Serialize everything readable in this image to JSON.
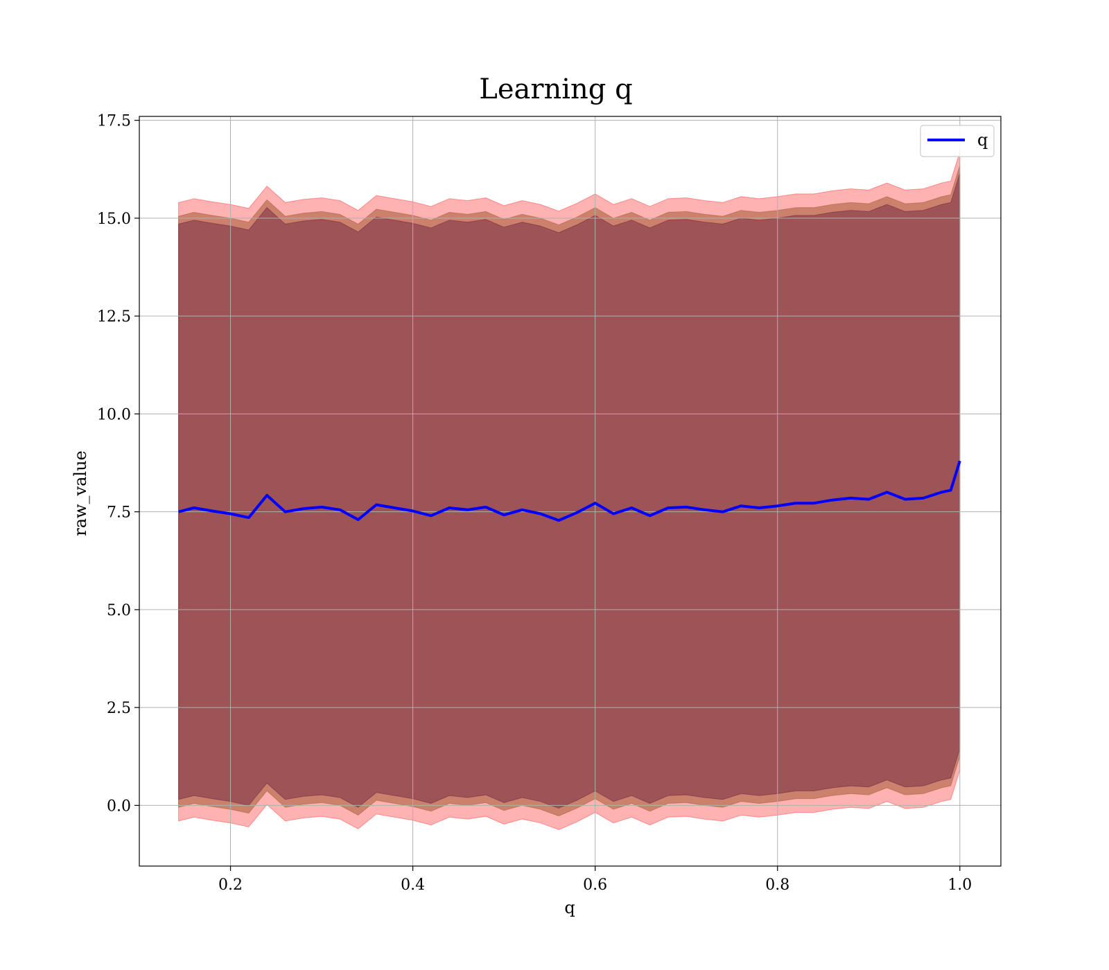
{
  "chart_data": {
    "type": "area",
    "title": "Learning q",
    "xlabel": "q",
    "ylabel": "raw_value",
    "xlim": [
      0.1,
      1.045
    ],
    "ylim": [
      -1.55,
      17.6
    ],
    "xticks": [
      0.2,
      0.4,
      0.6,
      0.8,
      1.0
    ],
    "xtick_labels": [
      "0.2",
      "0.4",
      "0.6",
      "0.8",
      "1.0"
    ],
    "yticks": [
      0.0,
      2.5,
      5.0,
      7.5,
      10.0,
      12.5,
      15.0,
      17.5
    ],
    "ytick_labels": [
      "0.0",
      "2.5",
      "5.0",
      "7.5",
      "10.0",
      "12.5",
      "15.0",
      "17.5"
    ],
    "grid": true,
    "legend_position": "top-right",
    "x": [
      0.143,
      0.16,
      0.18,
      0.2,
      0.22,
      0.24,
      0.26,
      0.28,
      0.3,
      0.32,
      0.34,
      0.36,
      0.38,
      0.4,
      0.42,
      0.44,
      0.46,
      0.48,
      0.5,
      0.52,
      0.54,
      0.56,
      0.58,
      0.6,
      0.62,
      0.64,
      0.66,
      0.68,
      0.7,
      0.72,
      0.74,
      0.76,
      0.78,
      0.8,
      0.82,
      0.84,
      0.86,
      0.88,
      0.9,
      0.92,
      0.94,
      0.96,
      0.98,
      0.99,
      1.0
    ],
    "series": [
      {
        "name": "q",
        "color": "#0000ff",
        "values": [
          7.5,
          7.6,
          7.52,
          7.45,
          7.35,
          7.92,
          7.5,
          7.58,
          7.62,
          7.55,
          7.3,
          7.68,
          7.6,
          7.52,
          7.4,
          7.6,
          7.55,
          7.62,
          7.42,
          7.55,
          7.45,
          7.28,
          7.48,
          7.72,
          7.45,
          7.6,
          7.4,
          7.6,
          7.62,
          7.55,
          7.5,
          7.65,
          7.6,
          7.65,
          7.72,
          7.72,
          7.8,
          7.85,
          7.82,
          8.0,
          7.82,
          7.85,
          8.0,
          8.05,
          8.8
        ]
      }
    ],
    "bands": [
      {
        "color": "#ff0000",
        "opacity": 0.3,
        "offset_upper": 7.9,
        "offset_lower": 7.9
      },
      {
        "color": "#8b4513",
        "opacity": 0.45,
        "offset_upper": 7.55,
        "offset_lower": 7.55
      },
      {
        "color": "#4b0030",
        "opacity": 0.35,
        "offset_upper": 7.35,
        "offset_lower": 7.35
      }
    ]
  }
}
